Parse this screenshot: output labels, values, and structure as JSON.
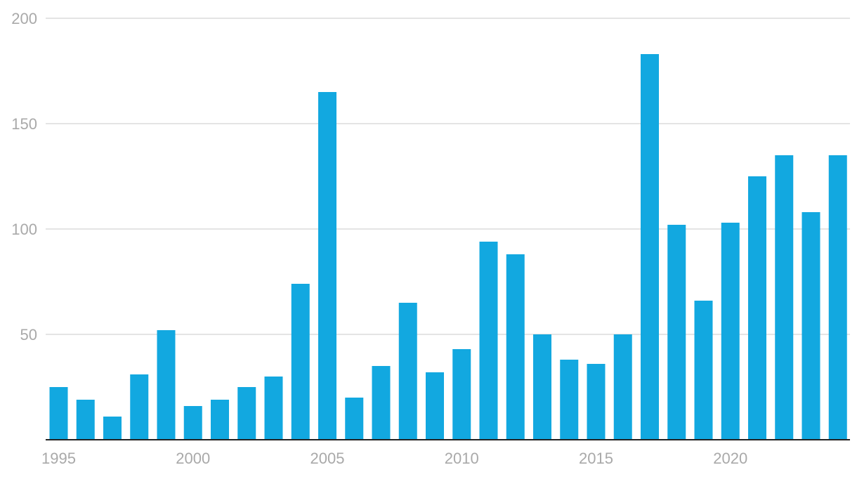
{
  "chart_data": {
    "type": "bar",
    "title": "",
    "xlabel": "",
    "ylabel": "",
    "ylim": [
      0,
      200
    ],
    "y_ticks": [
      50,
      100,
      150,
      200
    ],
    "x_tick_labels": [
      "1995",
      "2000",
      "2005",
      "2010",
      "2015",
      "2020"
    ],
    "grid": "horizontal",
    "legend": "none",
    "bar_color": "#12a8e0",
    "categories": [
      "1995",
      "1996",
      "1997",
      "1998",
      "1999",
      "2000",
      "2001",
      "2002",
      "2003",
      "2004",
      "2005",
      "2006",
      "2007",
      "2008",
      "2009",
      "2010",
      "2011",
      "2012",
      "2013",
      "2014",
      "2015",
      "2016",
      "2017",
      "2018",
      "2019",
      "2020",
      "2021",
      "2022",
      "2023",
      "2024"
    ],
    "values": [
      25,
      19,
      11,
      31,
      52,
      16,
      19,
      25,
      30,
      74,
      165,
      20,
      35,
      65,
      32,
      43,
      94,
      88,
      50,
      38,
      36,
      50,
      183,
      102,
      66,
      103,
      125,
      135,
      108,
      135
    ]
  }
}
